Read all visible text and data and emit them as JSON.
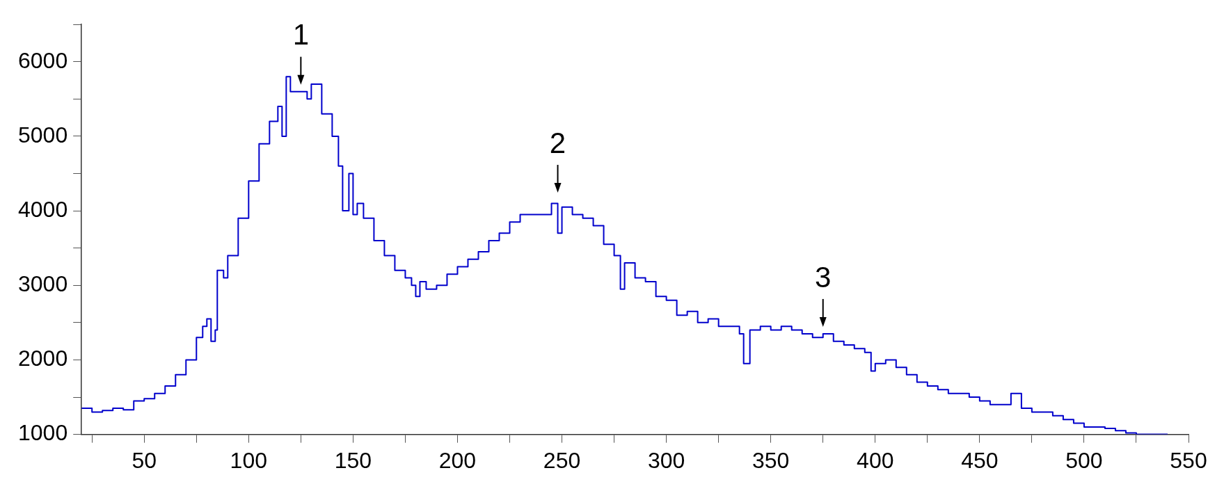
{
  "chart_data": {
    "type": "step",
    "x": [
      20,
      25,
      30,
      35,
      40,
      45,
      50,
      55,
      60,
      65,
      70,
      75,
      78,
      80,
      82,
      84,
      85,
      88,
      90,
      95,
      100,
      105,
      110,
      114,
      116,
      118,
      120,
      125,
      128,
      130,
      135,
      140,
      143,
      145,
      148,
      150,
      152,
      155,
      160,
      165,
      170,
      175,
      178,
      180,
      182,
      185,
      190,
      195,
      200,
      205,
      210,
      215,
      220,
      225,
      230,
      235,
      240,
      245,
      248,
      250,
      255,
      260,
      265,
      270,
      275,
      278,
      280,
      285,
      290,
      295,
      300,
      305,
      310,
      315,
      320,
      325,
      330,
      335,
      337,
      340,
      345,
      350,
      355,
      360,
      365,
      370,
      375,
      380,
      385,
      390,
      395,
      398,
      400,
      405,
      410,
      415,
      420,
      425,
      430,
      435,
      440,
      445,
      450,
      455,
      460,
      465,
      470,
      475,
      480,
      485,
      490,
      495,
      500,
      505,
      510,
      515,
      520,
      525,
      540
    ],
    "series": [
      {
        "color": "#0000cc",
        "values": [
          1350,
          1300,
          1320,
          1350,
          1330,
          1450,
          1480,
          1550,
          1650,
          1800,
          2000,
          2300,
          2450,
          2550,
          2250,
          2400,
          3200,
          3100,
          3400,
          3900,
          4400,
          4900,
          5200,
          5400,
          5000,
          5800,
          5600,
          5600,
          5500,
          5700,
          5300,
          5000,
          4600,
          4000,
          4500,
          3950,
          4100,
          3900,
          3600,
          3400,
          3200,
          3100,
          3000,
          2850,
          3050,
          2950,
          3000,
          3150,
          3250,
          3350,
          3450,
          3600,
          3700,
          3850,
          3950,
          3950,
          3950,
          4100,
          3700,
          4050,
          3950,
          3900,
          3800,
          3550,
          3400,
          2950,
          3300,
          3100,
          3050,
          2850,
          2800,
          2600,
          2650,
          2500,
          2550,
          2450,
          2450,
          2350,
          1950,
          2400,
          2450,
          2400,
          2450,
          2400,
          2350,
          2300,
          2350,
          2250,
          2200,
          2150,
          2100,
          1850,
          1950,
          2000,
          1900,
          1800,
          1700,
          1650,
          1600,
          1550,
          1550,
          1500,
          1450,
          1400,
          1400,
          1550,
          1350,
          1300,
          1300,
          1250,
          1200,
          1150,
          1100,
          1100,
          1080,
          1050,
          1020,
          1000,
          1000
        ]
      }
    ],
    "xlim": [
      20,
      550
    ],
    "xticks": [
      {
        "value": 25,
        "label": null
      },
      50,
      {
        "value": 75,
        "label": null
      },
      100,
      {
        "value": 125,
        "label": null
      },
      150,
      {
        "value": 175,
        "label": null
      },
      200,
      {
        "value": 225,
        "label": null
      },
      250,
      {
        "value": 275,
        "label": null
      },
      300,
      {
        "value": 325,
        "label": null
      },
      350,
      {
        "value": 375,
        "label": null
      },
      400,
      {
        "value": 425,
        "label": null
      },
      450,
      {
        "value": 475,
        "label": null
      },
      500,
      {
        "value": 525,
        "label": null
      },
      550
    ],
    "ylim": [
      1000,
      6500
    ],
    "yticks": [
      1000,
      {
        "value": 1500,
        "label": null
      },
      2000,
      {
        "value": 2500,
        "label": null
      },
      3000,
      {
        "value": 3500,
        "label": null
      },
      4000,
      {
        "value": 4500,
        "label": null
      },
      5000,
      {
        "value": 5500,
        "label": null
      },
      6000,
      {
        "value": 6500,
        "label": null
      }
    ],
    "annotations": [
      {
        "text": "1",
        "x": 125,
        "y": 5600
      },
      {
        "text": "2",
        "x": 248,
        "y": 4150
      },
      {
        "text": "3",
        "x": 375,
        "y": 2350
      }
    ],
    "grid": false,
    "legend": false,
    "marker": "none",
    "line_style": "solid"
  }
}
